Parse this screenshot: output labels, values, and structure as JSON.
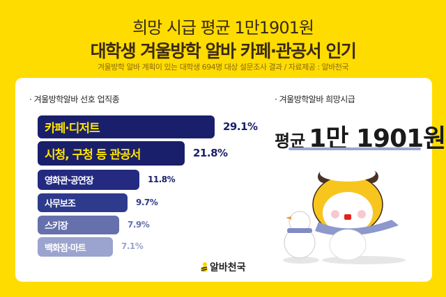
{
  "header": {
    "title_line1": "희망 시급 평균 1만1901원",
    "title_line2": "대학생 겨울방학 알바 카페·관공서 인기",
    "subtitle": "겨울방학 알바 계획이 있는 대학생 694명 대상 설문조사 결과 / 자료제공 : 알바천국"
  },
  "left_section": {
    "title": "· 겨울방학알바 선호 업직종"
  },
  "right_section": {
    "title": "· 겨울방학알바 희망시급",
    "avg_prefix": "평균",
    "avg_value": "1만 1901원"
  },
  "bars": [
    {
      "label": "카페·디저트",
      "pct": "29.1%",
      "color": "#1a1f6b",
      "text_color": "#FFE600",
      "pct_color": "#1a1f6b"
    },
    {
      "label": "시청, 구청 등 관공서",
      "pct": "21.8%",
      "color": "#1a1f6b",
      "text_color": "#FFE600",
      "pct_color": "#1a1f6b"
    },
    {
      "label": "영화관·공연장",
      "pct": "11.8%",
      "color": "#232a80",
      "text_color": "#ffffff",
      "pct_color": "#1a1f6b"
    },
    {
      "label": "사무보조",
      "pct": "9.7%",
      "color": "#2e3a8c",
      "text_color": "#ffffff",
      "pct_color": "#2e3a8c"
    },
    {
      "label": "스키장",
      "pct": "7.9%",
      "color": "#6570ad",
      "text_color": "#ffffff",
      "pct_color": "#6570ad"
    },
    {
      "label": "백화점·마트",
      "pct": "7.1%",
      "color": "#9ba3cf",
      "text_color": "#ffffff",
      "pct_color": "#9ba3cf"
    }
  ],
  "footer": {
    "logo_text": "알바천국"
  },
  "chart_data": {
    "type": "bar",
    "orientation": "horizontal",
    "title": "겨울방학알바 선호 업직종",
    "categories": [
      "카페·디저트",
      "시청, 구청 등 관공서",
      "영화관·공연장",
      "사무보조",
      "스키장",
      "백화점·마트"
    ],
    "values": [
      29.1,
      21.8,
      11.8,
      9.7,
      7.9,
      7.1
    ],
    "unit": "%",
    "annotation": "겨울방학알바 희망시급 평균 1만 1901원",
    "grid": false,
    "legend": null
  }
}
